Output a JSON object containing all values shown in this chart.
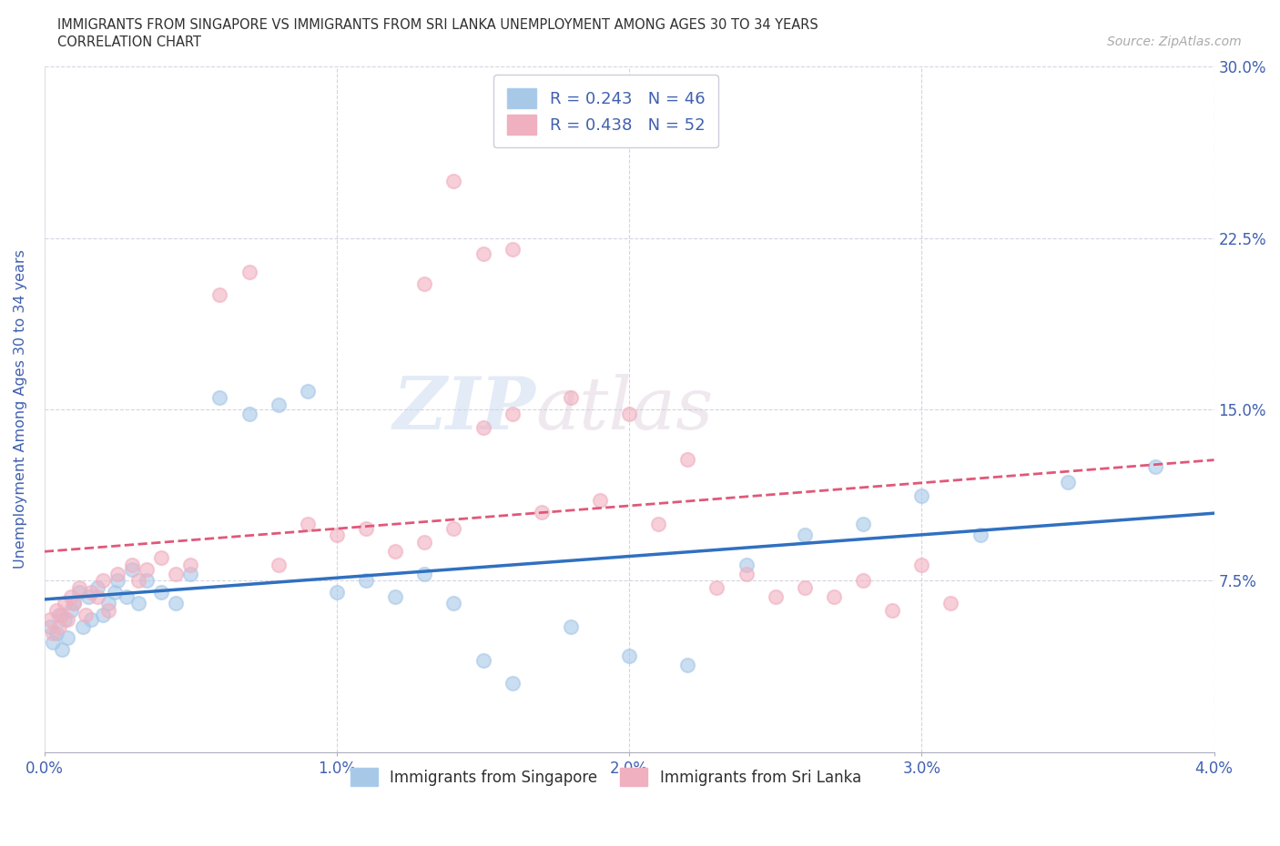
{
  "title_line1": "IMMIGRANTS FROM SINGAPORE VS IMMIGRANTS FROM SRI LANKA UNEMPLOYMENT AMONG AGES 30 TO 34 YEARS",
  "title_line2": "CORRELATION CHART",
  "source_text": "Source: ZipAtlas.com",
  "xlabel": "Immigrants from Singapore",
  "ylabel": "Unemployment Among Ages 30 to 34 years",
  "xlim": [
    0.0,
    0.04
  ],
  "ylim": [
    0.0,
    0.3
  ],
  "xticks": [
    0.0,
    0.01,
    0.02,
    0.03,
    0.04
  ],
  "yticks": [
    0.0,
    0.075,
    0.15,
    0.225,
    0.3
  ],
  "xtick_labels": [
    "0.0%",
    "1.0%",
    "2.0%",
    "3.0%",
    "4.0%"
  ],
  "ytick_labels": [
    "",
    "7.5%",
    "15.0%",
    "22.5%",
    "30.0%"
  ],
  "legend_R_singapore": "R = 0.243",
  "legend_N_singapore": "N = 46",
  "legend_R_srilanka": "R = 0.438",
  "legend_N_srilanka": "N = 52",
  "color_singapore": "#a8c8e8",
  "color_srilanka": "#f0b0c0",
  "color_singapore_line": "#3070c0",
  "color_srilanka_line": "#e05878",
  "color_grid": "#d0d0e0",
  "color_text": "#4060b0",
  "color_title": "#404040",
  "watermark_text": "ZIPatlas",
  "singapore_x": [
    0.0002,
    0.0003,
    0.0004,
    0.0005,
    0.0006,
    0.0007,
    0.0008,
    0.0009,
    0.001,
    0.0012,
    0.0013,
    0.0015,
    0.0016,
    0.0018,
    0.002,
    0.0022,
    0.0024,
    0.0025,
    0.0028,
    0.003,
    0.0032,
    0.0035,
    0.004,
    0.0045,
    0.005,
    0.006,
    0.007,
    0.008,
    0.009,
    0.01,
    0.011,
    0.012,
    0.013,
    0.014,
    0.015,
    0.016,
    0.018,
    0.02,
    0.022,
    0.024,
    0.026,
    0.028,
    0.03,
    0.032,
    0.035,
    0.038
  ],
  "singapore_y": [
    0.055,
    0.048,
    0.052,
    0.06,
    0.045,
    0.058,
    0.05,
    0.062,
    0.065,
    0.07,
    0.055,
    0.068,
    0.058,
    0.072,
    0.06,
    0.065,
    0.07,
    0.075,
    0.068,
    0.08,
    0.065,
    0.075,
    0.07,
    0.065,
    0.078,
    0.155,
    0.148,
    0.152,
    0.158,
    0.07,
    0.075,
    0.068,
    0.078,
    0.065,
    0.04,
    0.03,
    0.055,
    0.042,
    0.038,
    0.082,
    0.095,
    0.1,
    0.112,
    0.095,
    0.118,
    0.125
  ],
  "srilanka_x": [
    0.0002,
    0.0003,
    0.0004,
    0.0005,
    0.0006,
    0.0007,
    0.0008,
    0.0009,
    0.001,
    0.0012,
    0.0014,
    0.0016,
    0.0018,
    0.002,
    0.0022,
    0.0025,
    0.003,
    0.0032,
    0.0035,
    0.004,
    0.0045,
    0.005,
    0.006,
    0.007,
    0.008,
    0.009,
    0.01,
    0.011,
    0.012,
    0.013,
    0.014,
    0.015,
    0.016,
    0.017,
    0.018,
    0.019,
    0.02,
    0.021,
    0.022,
    0.023,
    0.024,
    0.025,
    0.026,
    0.027,
    0.028,
    0.029,
    0.03,
    0.031,
    0.014,
    0.015,
    0.013,
    0.016
  ],
  "srilanka_y": [
    0.058,
    0.052,
    0.062,
    0.055,
    0.06,
    0.065,
    0.058,
    0.068,
    0.065,
    0.072,
    0.06,
    0.07,
    0.068,
    0.075,
    0.062,
    0.078,
    0.082,
    0.075,
    0.08,
    0.085,
    0.078,
    0.082,
    0.2,
    0.21,
    0.082,
    0.1,
    0.095,
    0.098,
    0.088,
    0.092,
    0.098,
    0.142,
    0.148,
    0.105,
    0.155,
    0.11,
    0.148,
    0.1,
    0.128,
    0.072,
    0.078,
    0.068,
    0.072,
    0.068,
    0.075,
    0.062,
    0.082,
    0.065,
    0.25,
    0.218,
    0.205,
    0.22
  ]
}
